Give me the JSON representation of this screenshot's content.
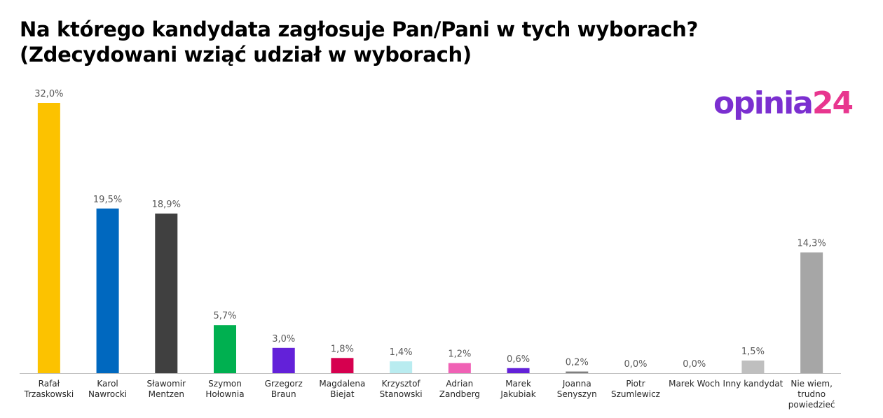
{
  "title": {
    "line1": "Na którego kandydata zagłosuje Pan/Pani w tych wyborach?",
    "line2": "(Zdecydowani wziąć udział w wyborach)"
  },
  "logo": {
    "part1": "opinia",
    "part2": "24",
    "colors": [
      "#7b2fd0",
      "#e8368f"
    ]
  },
  "chart_data": {
    "type": "bar",
    "categories": [
      [
        "Rafał",
        "Trzaskowski"
      ],
      [
        "Karol",
        "Nawrocki"
      ],
      [
        "Sławomir",
        "Mentzen"
      ],
      [
        "Szymon",
        "Hołownia"
      ],
      [
        "Grzegorz",
        "Braun"
      ],
      [
        "Magdalena",
        "Biejat"
      ],
      [
        "Krzysztof",
        "Stanowski"
      ],
      [
        "Adrian",
        "Zandberg"
      ],
      [
        "Marek",
        "Jakubiak"
      ],
      [
        "Joanna",
        "Senyszyn"
      ],
      [
        "Piotr",
        "Szumlewicz"
      ],
      [
        "Marek Woch"
      ],
      [
        "Inny kandydat"
      ],
      [
        "Nie wiem,",
        "trudno",
        "powiedzieć"
      ]
    ],
    "values": [
      32.0,
      19.5,
      18.9,
      5.7,
      3.0,
      1.8,
      1.4,
      1.2,
      0.6,
      0.2,
      0.0,
      0.0,
      1.5,
      14.3
    ],
    "value_labels": [
      "32,0%",
      "19,5%",
      "18,9%",
      "5,7%",
      "3,0%",
      "1,8%",
      "1,4%",
      "1,2%",
      "0,6%",
      "0,2%",
      "0,0%",
      "0,0%",
      "1,5%",
      "14,3%"
    ],
    "colors": [
      "#fcc200",
      "#0068bf",
      "#404040",
      "#00b050",
      "#6321d9",
      "#d6004f",
      "#b9ecf0",
      "#f061b5",
      "#6321d9",
      "#7f7f7f",
      "#7f7f7f",
      "#7f7f7f",
      "#bfbfbf",
      "#a6a6a6"
    ],
    "ylim": [
      0,
      32
    ],
    "grid": false,
    "legend": "none"
  }
}
